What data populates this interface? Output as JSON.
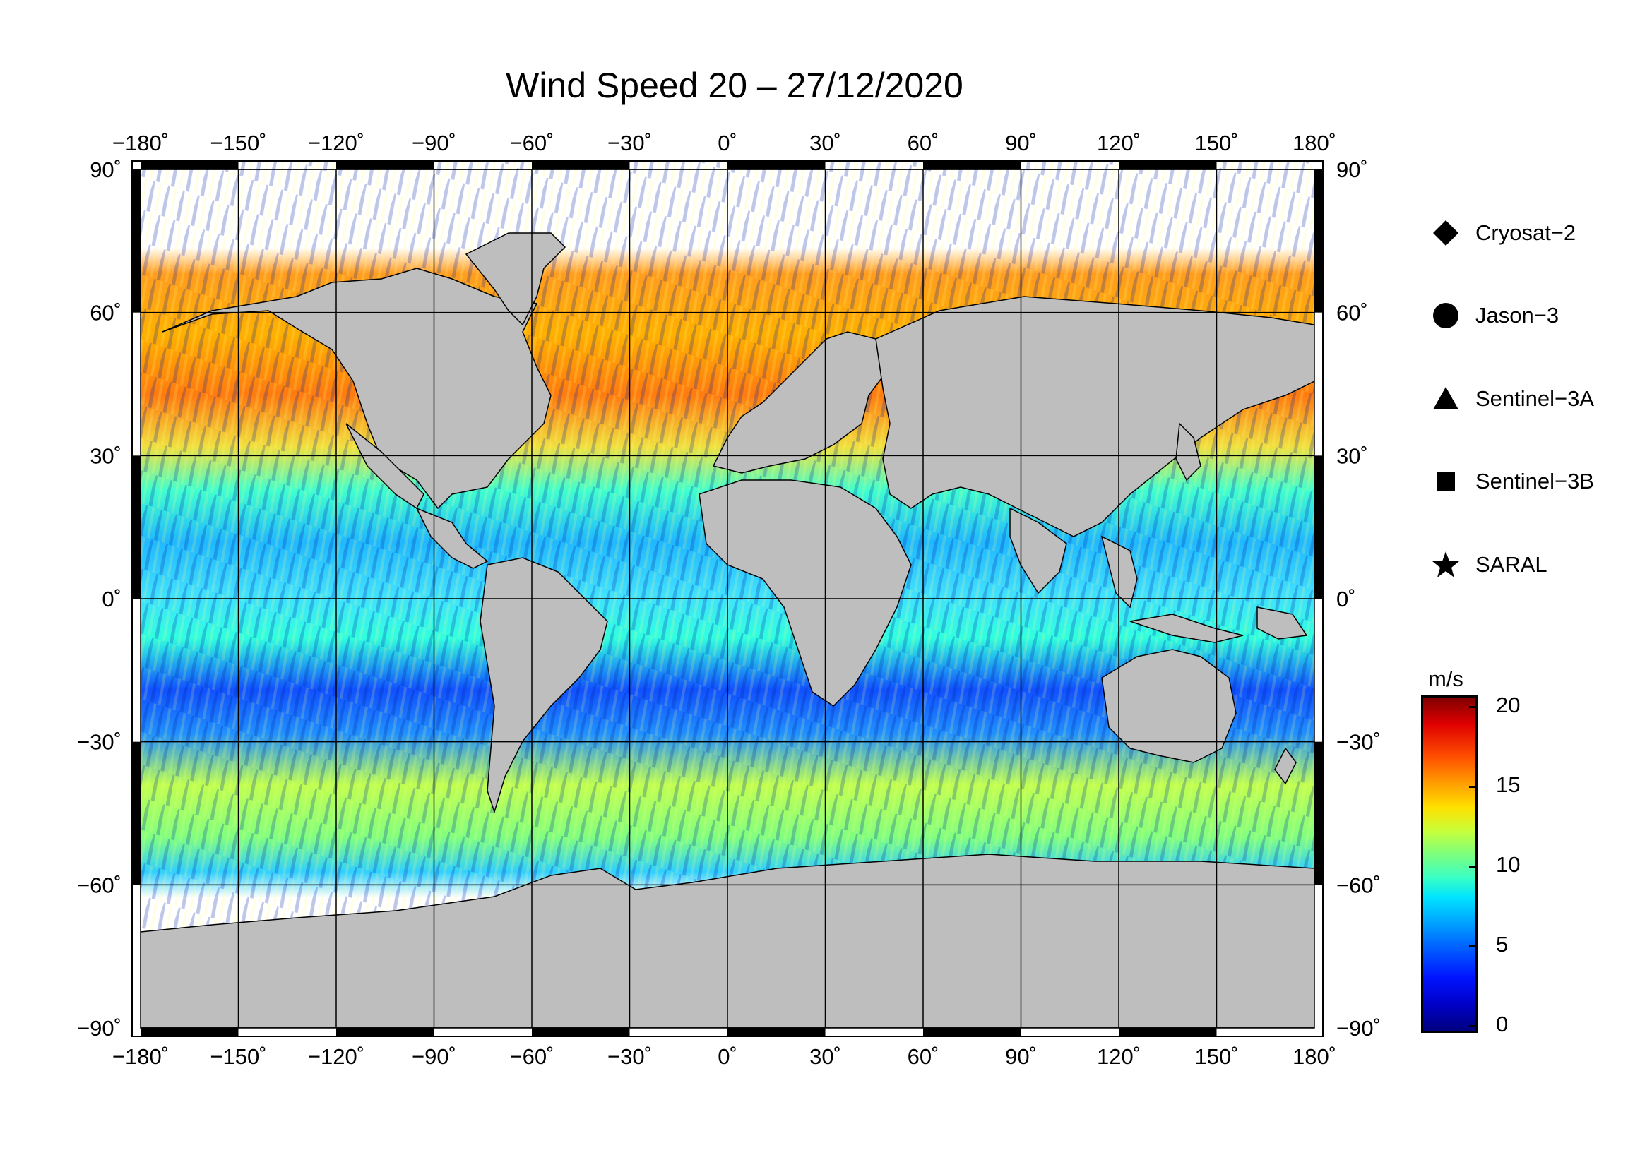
{
  "title": "Wind Speed 20 – 27/12/2020",
  "lon_ticks": [
    "−180˚",
    "−150˚",
    "−120˚",
    "−90˚",
    "−60˚",
    "−30˚",
    "0˚",
    "30˚",
    "60˚",
    "90˚",
    "120˚",
    "150˚",
    "180˚"
  ],
  "lat_ticks_left": [
    "90˚",
    "60˚",
    "30˚",
    "0˚",
    "−30˚",
    "−60˚",
    "−90˚"
  ],
  "lat_ticks_right": [
    "90˚",
    "60˚",
    "30˚",
    "0˚",
    "−30˚",
    "−60˚",
    "−90˚"
  ],
  "legend": [
    {
      "label": "Cryosat−2",
      "symbol": "diamond"
    },
    {
      "label": "Jason−3",
      "symbol": "circle"
    },
    {
      "label": "Sentinel−3A",
      "symbol": "triangle"
    },
    {
      "label": "Sentinel−3B",
      "symbol": "square"
    },
    {
      "label": "SARAL",
      "symbol": "star"
    }
  ],
  "colorbar": {
    "unit": "m/s",
    "ticks": [
      "20",
      "15",
      "10",
      "5",
      "0"
    ],
    "range": [
      0,
      21
    ],
    "colormap": "jet"
  },
  "map": {
    "projection": "equirectangular",
    "lon_range": [
      -180,
      180
    ],
    "lat_range": [
      -90,
      90
    ],
    "grid_step_deg": 30,
    "land_color": "#c0c0c0",
    "ice_color": "#ffffff",
    "ocean_field": "altimeter wind speed swaths"
  }
}
